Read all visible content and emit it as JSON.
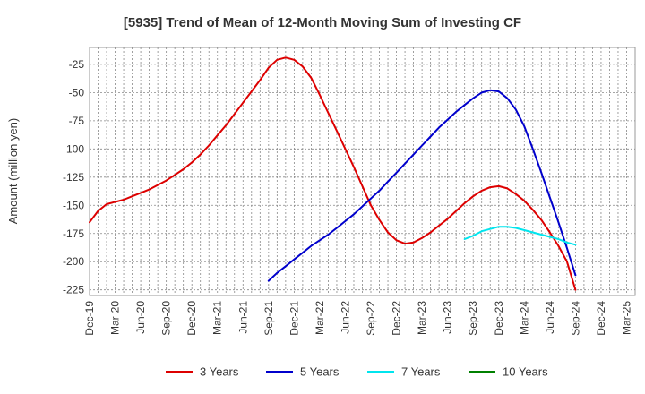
{
  "chart_data": {
    "type": "line",
    "title": "[5935]  Trend of Mean of 12-Month Moving Sum of Investing CF",
    "xlabel": "",
    "ylabel": "Amount (million yen)",
    "ylim": [
      -230,
      -10
    ],
    "yticks": [
      -25,
      -50,
      -75,
      -100,
      -125,
      -150,
      -175,
      -200,
      -225
    ],
    "x_ticks": [
      "Dec-19",
      "Mar-20",
      "Jun-20",
      "Sep-20",
      "Dec-20",
      "Mar-21",
      "Jun-21",
      "Sep-21",
      "Dec-21",
      "Mar-22",
      "Jun-22",
      "Sep-22",
      "Dec-22",
      "Mar-23",
      "Jun-23",
      "Sep-23",
      "Dec-23",
      "Mar-24",
      "Jun-24",
      "Sep-24",
      "Dec-24",
      "Mar-25"
    ],
    "grid": true,
    "legend_position": "bottom",
    "series": [
      {
        "name": "3 Years",
        "color": "#dd0000",
        "x": [
          "Dec-19",
          "Jan-20",
          "Feb-20",
          "Mar-20",
          "Apr-20",
          "May-20",
          "Jun-20",
          "Jul-20",
          "Aug-20",
          "Sep-20",
          "Oct-20",
          "Nov-20",
          "Dec-20",
          "Jan-21",
          "Feb-21",
          "Mar-21",
          "Apr-21",
          "May-21",
          "Jun-21",
          "Jul-21",
          "Aug-21",
          "Sep-21",
          "Oct-21",
          "Nov-21",
          "Dec-21",
          "Jan-22",
          "Feb-22",
          "Mar-22",
          "Apr-22",
          "May-22",
          "Jun-22",
          "Jul-22",
          "Aug-22",
          "Sep-22",
          "Oct-22",
          "Nov-22",
          "Dec-22",
          "Jan-23",
          "Feb-23",
          "Mar-23",
          "Apr-23",
          "May-23",
          "Jun-23",
          "Jul-23",
          "Aug-23",
          "Sep-23",
          "Oct-23",
          "Nov-23",
          "Dec-23",
          "Jan-24",
          "Feb-24",
          "Mar-24",
          "Apr-24",
          "May-24",
          "Jun-24",
          "Jul-24",
          "Aug-24",
          "Sep-24"
        ],
        "values": [
          -165,
          -155,
          -149,
          -147,
          -145,
          -142,
          -139,
          -136,
          -132,
          -128,
          -123,
          -118,
          -112,
          -105,
          -97,
          -88,
          -79,
          -69,
          -59,
          -49,
          -39,
          -28,
          -21,
          -19,
          -21,
          -27,
          -37,
          -52,
          -68,
          -84,
          -100,
          -116,
          -133,
          -150,
          -163,
          -174,
          -181,
          -184,
          -183,
          -179,
          -174,
          -168,
          -162,
          -155,
          -148,
          -142,
          -137,
          -134,
          -133,
          -135,
          -140,
          -146,
          -154,
          -163,
          -174,
          -186,
          -200,
          -225
        ]
      },
      {
        "name": "5 Years",
        "color": "#0000cc",
        "x": [
          "Sep-21",
          "Oct-21",
          "Nov-21",
          "Dec-21",
          "Jan-22",
          "Feb-22",
          "Mar-22",
          "Apr-22",
          "May-22",
          "Jun-22",
          "Jul-22",
          "Aug-22",
          "Sep-22",
          "Oct-22",
          "Nov-22",
          "Dec-22",
          "Jan-23",
          "Feb-23",
          "Mar-23",
          "Apr-23",
          "May-23",
          "Jun-23",
          "Jul-23",
          "Aug-23",
          "Sep-23",
          "Oct-23",
          "Nov-23",
          "Dec-23",
          "Jan-24",
          "Feb-24",
          "Mar-24",
          "Apr-24",
          "May-24",
          "Jun-24",
          "Jul-24",
          "Aug-24",
          "Sep-24"
        ],
        "values": [
          -217,
          -210,
          -204,
          -198,
          -192,
          -186,
          -181,
          -176,
          -170,
          -164,
          -158,
          -151,
          -144,
          -137,
          -129,
          -121,
          -113,
          -105,
          -97,
          -89,
          -81,
          -74,
          -67,
          -61,
          -55,
          -50,
          -48,
          -49,
          -55,
          -65,
          -80,
          -100,
          -121,
          -143,
          -165,
          -188,
          -212
        ]
      },
      {
        "name": "7 Years",
        "color": "#00e5ee",
        "x": [
          "Aug-23",
          "Sep-23",
          "Oct-23",
          "Nov-23",
          "Dec-23",
          "Jan-24",
          "Feb-24",
          "Mar-24",
          "Apr-24",
          "May-24",
          "Jun-24",
          "Jul-24",
          "Aug-24",
          "Sep-24"
        ],
        "values": [
          -180,
          -177,
          -173,
          -171,
          -169,
          -169,
          -170,
          -172,
          -174,
          -176,
          -178,
          -180,
          -183,
          -185
        ]
      },
      {
        "name": "10 Years",
        "color": "#008000",
        "x": [],
        "values": []
      }
    ]
  }
}
